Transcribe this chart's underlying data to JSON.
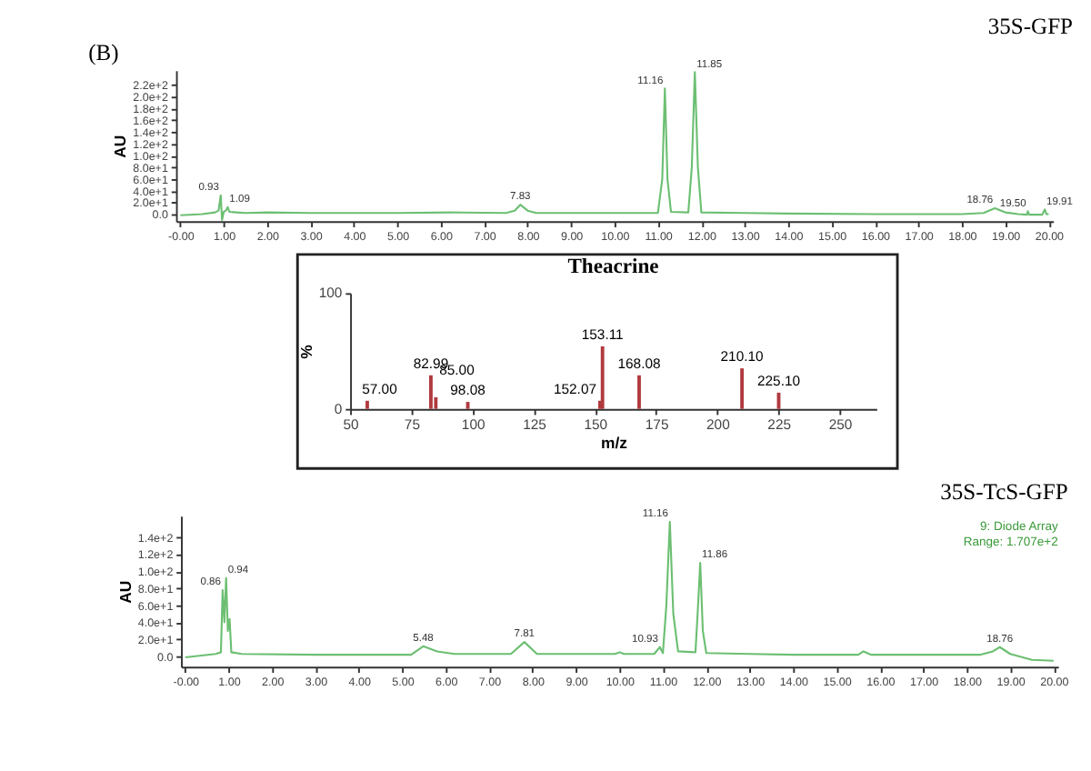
{
  "chart_data": [
    {
      "type": "line",
      "title": "35S-GFP",
      "ylabel": "AU",
      "grid": false,
      "legend": false,
      "annotations": [
        "(B)",
        {
          "text": "0.93",
          "x": 0.93,
          "y": 32
        },
        {
          "text": "1.09",
          "x": 1.09,
          "y": 12
        },
        {
          "text": "7.83",
          "x": 7.83,
          "y": 16
        },
        {
          "text": "11.16",
          "x": 11.16,
          "y": 214
        },
        {
          "text": "11.85",
          "x": 11.85,
          "y": 242
        },
        {
          "text": "18.76",
          "x": 18.76,
          "y": 10
        },
        {
          "text": "19.50",
          "x": 19.52,
          "y": 5
        },
        {
          "text": "19.91",
          "x": 19.91,
          "y": 8
        }
      ],
      "xlim": [
        -0.1,
        20.1
      ],
      "ylim": [
        -12,
        245
      ],
      "xticks": [
        {
          "value": 0,
          "label": "-0.00"
        },
        {
          "value": 1,
          "label": "1.00"
        },
        {
          "value": 2,
          "label": "2.00"
        },
        {
          "value": 3,
          "label": "3.00"
        },
        {
          "value": 4,
          "label": "4.00"
        },
        {
          "value": 5,
          "label": "5.00"
        },
        {
          "value": 6,
          "label": "6.00"
        },
        {
          "value": 7,
          "label": "7.00"
        },
        {
          "value": 8,
          "label": "8.00"
        },
        {
          "value": 9,
          "label": "9.00"
        },
        {
          "value": 10,
          "label": "10.00"
        },
        {
          "value": 11,
          "label": "11.00"
        },
        {
          "value": 12,
          "label": "12.00"
        },
        {
          "value": 13,
          "label": "13.00"
        },
        {
          "value": 14,
          "label": "14.00"
        },
        {
          "value": 15,
          "label": "15.00"
        },
        {
          "value": 16,
          "label": "16.00"
        },
        {
          "value": 17,
          "label": "17.00"
        },
        {
          "value": 18,
          "label": "18.00"
        },
        {
          "value": 19,
          "label": "19.00"
        },
        {
          "value": 20,
          "label": "20.00"
        }
      ],
      "yticks": [
        {
          "value": 0,
          "label": "0.0"
        },
        {
          "value": 20,
          "label": "2.0e+1"
        },
        {
          "value": 40,
          "label": "4.0e+1"
        },
        {
          "value": 60,
          "label": "6.0e+1"
        },
        {
          "value": 80,
          "label": "8.0e+1"
        },
        {
          "value": 100,
          "label": "1.0e+2"
        },
        {
          "value": 120,
          "label": "1.2e+2"
        },
        {
          "value": 140,
          "label": "1.4e+2"
        },
        {
          "value": 160,
          "label": "1.6e+2"
        },
        {
          "value": 180,
          "label": "1.8e+2"
        },
        {
          "value": 200,
          "label": "2.0e+2"
        },
        {
          "value": 220,
          "label": "2.2e+2"
        }
      ],
      "series": [
        {
          "color": "#6cbf72",
          "x": [
            0,
            0.5,
            0.8,
            0.88,
            0.93,
            0.96,
            1.0,
            1.05,
            1.09,
            1.13,
            1.3,
            1.5,
            2.0,
            3,
            5,
            6.2,
            7.5,
            7.7,
            7.83,
            8.0,
            8.2,
            10,
            11.0,
            11.1,
            11.16,
            11.22,
            11.3,
            11.7,
            11.78,
            11.85,
            11.92,
            12.0,
            13,
            14,
            16,
            18,
            18.5,
            18.76,
            19.0,
            19.3,
            19.5,
            19.52,
            19.55,
            19.85,
            19.91,
            19.95,
            20
          ],
          "values": [
            -2,
            0,
            3,
            6,
            32,
            -10,
            4,
            6,
            12,
            4,
            3,
            2,
            3,
            2,
            2,
            3,
            2,
            6,
            16,
            6,
            2,
            2,
            2,
            60,
            214,
            60,
            4,
            3,
            80,
            242,
            80,
            3,
            2,
            1,
            0,
            0,
            2,
            10,
            3,
            0,
            -1,
            5,
            -1,
            -1,
            8,
            0,
            0
          ]
        }
      ]
    },
    {
      "type": "bar",
      "title": "Theacrine",
      "xlabel": "m/z",
      "ylabel": "%",
      "grid": false,
      "legend": false,
      "xlim": [
        50,
        265
      ],
      "ylim": [
        0,
        100
      ],
      "xticks": [
        50,
        75,
        100,
        125,
        150,
        175,
        200,
        225,
        250
      ],
      "yticks": [
        0,
        100
      ],
      "x": [
        57.0,
        82.99,
        85.0,
        98.08,
        152.07,
        153.11,
        168.08,
        210.1,
        225.1
      ],
      "values": [
        7,
        29,
        10,
        6,
        7,
        54,
        29,
        35,
        14
      ],
      "annotations": [
        {
          "text": "57.00",
          "x": 57.0,
          "y": 7
        },
        {
          "text": "82.99",
          "x": 82.99,
          "y": 29
        },
        {
          "text": "85.00",
          "x": 85.0,
          "y": 10
        },
        {
          "text": "98.08",
          "x": 98.08,
          "y": 6
        },
        {
          "text": "152.07",
          "x": 152.07,
          "y": 7
        },
        {
          "text": "153.11",
          "x": 153.11,
          "y": 54
        },
        {
          "text": "168.08",
          "x": 168.08,
          "y": 29
        },
        {
          "text": "210.10",
          "x": 210.1,
          "y": 35
        },
        {
          "text": "225.10",
          "x": 225.1,
          "y": 14
        }
      ],
      "color": "#b03a3e"
    },
    {
      "type": "line",
      "title": "35S-TcS-GFP",
      "ylabel": "AU",
      "grid": false,
      "legend": false,
      "annotations": [
        "9: Diode Array",
        "Range: 1.707e+2",
        {
          "text": "0.86",
          "x": 0.86,
          "y": 78
        },
        {
          "text": "0.94",
          "x": 0.94,
          "y": 92
        },
        {
          "text": "5.48",
          "x": 5.48,
          "y": 12
        },
        {
          "text": "7.81",
          "x": 7.81,
          "y": 17
        },
        {
          "text": "10.93",
          "x": 10.93,
          "y": 11
        },
        {
          "text": "11.16",
          "x": 11.16,
          "y": 158
        },
        {
          "text": "11.86",
          "x": 11.86,
          "y": 110
        },
        {
          "text": "18.76",
          "x": 18.76,
          "y": 11
        }
      ],
      "xlim": [
        -0.1,
        20.1
      ],
      "ylim": [
        -12,
        165
      ],
      "xticks": [
        {
          "value": 0,
          "label": "-0.00"
        },
        {
          "value": 1,
          "label": "1.00"
        },
        {
          "value": 2,
          "label": "2.00"
        },
        {
          "value": 3,
          "label": "3.00"
        },
        {
          "value": 4,
          "label": "4.00"
        },
        {
          "value": 5,
          "label": "5.00"
        },
        {
          "value": 6,
          "label": "6.00"
        },
        {
          "value": 7,
          "label": "7.00"
        },
        {
          "value": 8,
          "label": "8.00"
        },
        {
          "value": 9,
          "label": "9.00"
        },
        {
          "value": 10,
          "label": "10.00"
        },
        {
          "value": 11,
          "label": "11.00"
        },
        {
          "value": 12,
          "label": "12.00"
        },
        {
          "value": 13,
          "label": "13.00"
        },
        {
          "value": 14,
          "label": "14.00"
        },
        {
          "value": 15,
          "label": "15.00"
        },
        {
          "value": 16,
          "label": "16.00"
        },
        {
          "value": 17,
          "label": "17.00"
        },
        {
          "value": 18,
          "label": "18.00"
        },
        {
          "value": 19,
          "label": "19.00"
        },
        {
          "value": 20,
          "label": "20.00"
        }
      ],
      "yticks": [
        {
          "value": 0,
          "label": "0.0"
        },
        {
          "value": 20,
          "label": "2.0e+1"
        },
        {
          "value": 40,
          "label": "4.0e+1"
        },
        {
          "value": 60,
          "label": "6.0e+1"
        },
        {
          "value": 80,
          "label": "8.0e+1"
        },
        {
          "value": 100,
          "label": "1.0e+2"
        },
        {
          "value": 120,
          "label": "1.2e+2"
        },
        {
          "value": 140,
          "label": "1.4e+2"
        }
      ],
      "series": [
        {
          "color": "#6cbf72",
          "x": [
            0,
            0.7,
            0.82,
            0.86,
            0.9,
            0.94,
            0.98,
            1.02,
            1.06,
            1.3,
            3,
            5.2,
            5.48,
            5.8,
            6.2,
            7.5,
            7.81,
            8.1,
            9.9,
            10.0,
            10.1,
            10.8,
            10.93,
            11.0,
            11.08,
            11.16,
            11.24,
            11.35,
            11.75,
            11.8,
            11.86,
            11.92,
            12.0,
            13,
            14,
            15.5,
            15.62,
            15.8,
            18.3,
            18.6,
            18.76,
            19.0,
            19.5,
            20
          ],
          "values": [
            -1,
            3,
            5,
            78,
            40,
            92,
            30,
            44,
            5,
            3,
            2,
            2,
            12,
            6,
            3,
            3,
            17,
            3,
            3,
            5,
            3,
            3,
            11,
            4,
            60,
            158,
            50,
            6,
            5,
            50,
            110,
            30,
            4,
            3,
            2,
            2,
            6,
            2,
            2,
            6,
            11,
            3,
            -4,
            -5
          ]
        }
      ]
    }
  ]
}
